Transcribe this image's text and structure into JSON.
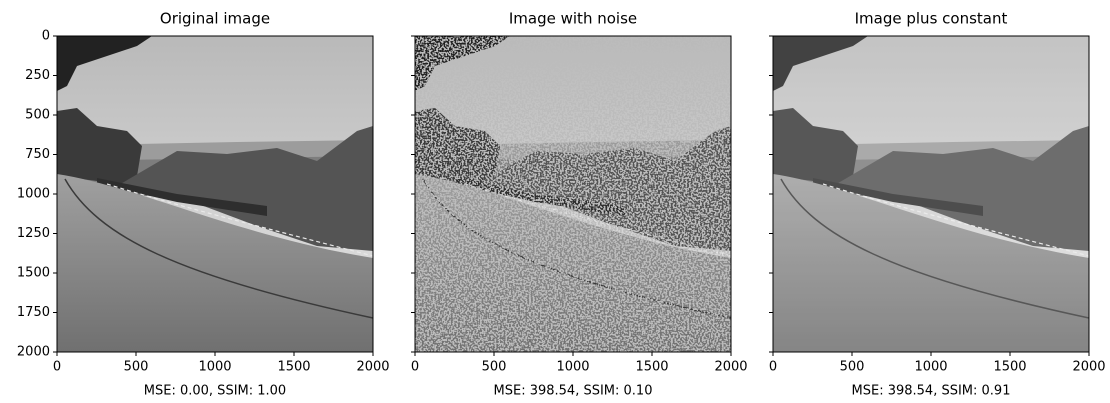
{
  "chart_data": [
    {
      "type": "image",
      "title": "Original image",
      "xlabel": "MSE: 0.00, SSIM: 1.00",
      "xlim": [
        0,
        2000
      ],
      "ylim": [
        2000,
        0
      ],
      "xticks": [
        0,
        500,
        1000,
        1500,
        2000
      ],
      "yticks": [
        0,
        250,
        500,
        750,
        1000,
        1250,
        1500,
        1750,
        2000
      ]
    },
    {
      "type": "image",
      "title": "Image with noise",
      "xlabel": "MSE: 398.54, SSIM: 0.10",
      "xlim": [
        0,
        2000
      ],
      "ylim": [
        2000,
        0
      ],
      "xticks": [
        0,
        500,
        1000,
        1500,
        2000
      ],
      "sharey": true,
      "noise": true
    },
    {
      "type": "image",
      "title": "Image plus constant",
      "xlabel": "MSE: 398.54, SSIM: 0.91",
      "xlim": [
        0,
        2000
      ],
      "ylim": [
        2000,
        0
      ],
      "xticks": [
        0,
        500,
        1000,
        1500,
        2000
      ],
      "sharey": true,
      "brighter": true
    }
  ]
}
